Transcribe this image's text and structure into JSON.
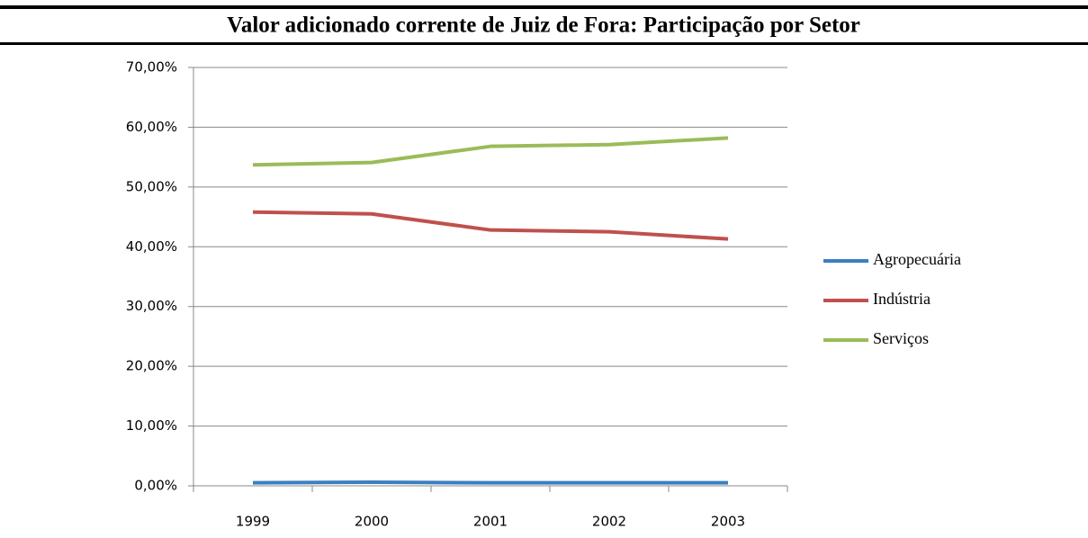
{
  "chart_data": {
    "type": "line",
    "title": "Valor adicionado corrente de Juiz de Fora: Participação por Setor",
    "categories": [
      "1999",
      "2000",
      "2001",
      "2002",
      "2003"
    ],
    "series": [
      {
        "name": "Agropecuária",
        "color": "#3a7fc1",
        "values": [
          0.5,
          0.6,
          0.5,
          0.5,
          0.5
        ]
      },
      {
        "name": "Indústria",
        "color": "#c0504d",
        "values": [
          45.8,
          45.5,
          42.8,
          42.5,
          41.3
        ]
      },
      {
        "name": "Serviços",
        "color": "#9bbb59",
        "values": [
          53.7,
          54.1,
          56.8,
          57.1,
          58.2
        ]
      }
    ],
    "ylim": [
      0,
      70
    ],
    "yticks": [
      {
        "value": 0,
        "label": "0,00%"
      },
      {
        "value": 10,
        "label": "10,00%"
      },
      {
        "value": 20,
        "label": "20,00%"
      },
      {
        "value": 30,
        "label": "30,00%"
      },
      {
        "value": 40,
        "label": "40,00%"
      },
      {
        "value": 50,
        "label": "50,00%"
      },
      {
        "value": 60,
        "label": "60,00%"
      },
      {
        "value": 70,
        "label": "70,00%"
      }
    ],
    "grid": true,
    "legend": "right"
  }
}
